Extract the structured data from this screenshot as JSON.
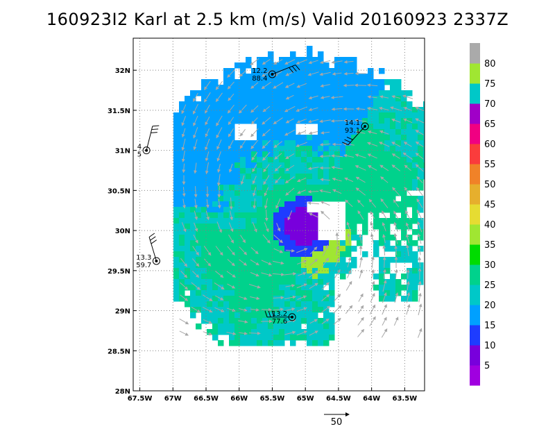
{
  "title": "160923I2 Karl at 2.5 km (m/s) Valid 20160923 2337Z",
  "map": {
    "lon_range": [
      -67.6,
      -63.2
    ],
    "lat_range": [
      28.0,
      32.4
    ],
    "x_ticks": [
      {
        "lon": -67.5,
        "label": "67.5W"
      },
      {
        "lon": -67.0,
        "label": "67W"
      },
      {
        "lon": -66.5,
        "label": "66.5W"
      },
      {
        "lon": -66.0,
        "label": "66W"
      },
      {
        "lon": -65.5,
        "label": "65.5W"
      },
      {
        "lon": -65.0,
        "label": "65W"
      },
      {
        "lon": -64.5,
        "label": "64.5W"
      },
      {
        "lon": -64.0,
        "label": "64W"
      },
      {
        "lon": -63.5,
        "label": "63.5W"
      }
    ],
    "y_ticks": [
      {
        "lat": 28.0,
        "label": "28N"
      },
      {
        "lat": 28.5,
        "label": "28.5N"
      },
      {
        "lat": 29.0,
        "label": "29N"
      },
      {
        "lat": 29.5,
        "label": "29.5N"
      },
      {
        "lat": 30.0,
        "label": "30N"
      },
      {
        "lat": 30.5,
        "label": "30.5N"
      },
      {
        "lat": 31.0,
        "label": "31N"
      },
      {
        "lat": 31.5,
        "label": "31.5N"
      },
      {
        "lat": 32.0,
        "label": "32N"
      }
    ],
    "grid": "dotted"
  },
  "colorbar": {
    "colors": [
      "#a000e0",
      "#7800dc",
      "#1e3cff",
      "#00a0ff",
      "#00c8c8",
      "#00d28c",
      "#00dc00",
      "#a0e632",
      "#e6dc32",
      "#e6af2d",
      "#f08228",
      "#fa3c3c",
      "#f00082",
      "#a000c8",
      "#00c8c8",
      "#a0e632",
      "#aaaaaa"
    ],
    "labels": [
      "5",
      "10",
      "15",
      "20",
      "25",
      "30",
      "35",
      "40",
      "45",
      "50",
      "55",
      "60",
      "65",
      "70",
      "75",
      "80"
    ]
  },
  "stations": [
    {
      "lon": -65.5,
      "lat": 31.95,
      "label1": "12.2",
      "label2": "88.4"
    },
    {
      "lon": -64.1,
      "lat": 31.3,
      "label1": "14.1",
      "label2": "93.1"
    },
    {
      "lon": -67.4,
      "lat": 31.0,
      "label1": "4",
      "label2": "5"
    },
    {
      "lon": -67.25,
      "lat": 29.62,
      "label1": "13.3",
      "label2": "59.7"
    },
    {
      "lon": -65.2,
      "lat": 28.92,
      "label1": "13.2",
      "label2": "77.6"
    }
  ],
  "reference_vector": {
    "label": "50"
  },
  "storm_center": {
    "lon": -65.05,
    "lat": 30.05
  }
}
